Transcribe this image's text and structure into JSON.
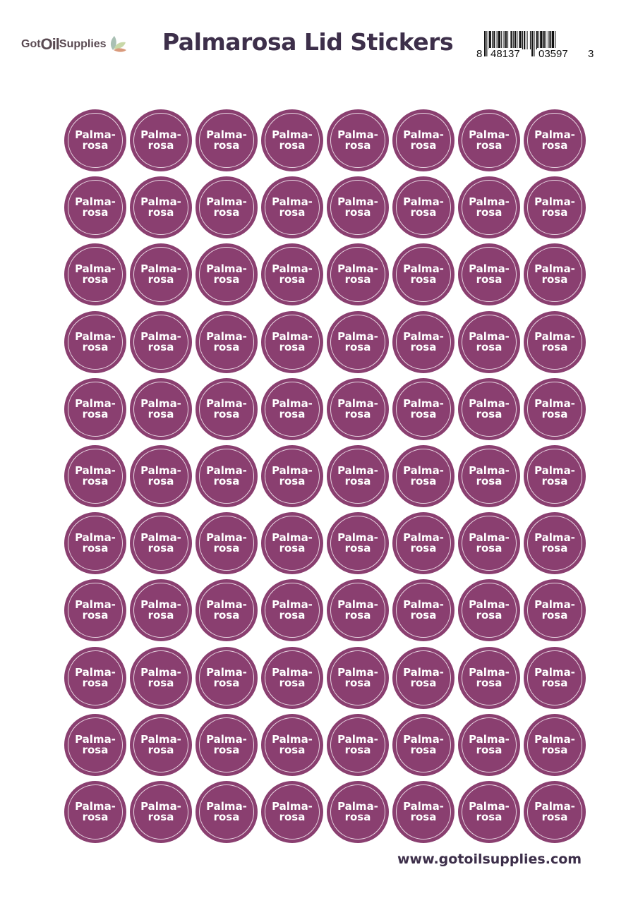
{
  "header": {
    "brand_logo": {
      "part1": "Got",
      "part2": "Oil",
      "part3": "Supplies"
    },
    "title": "Palmarosa Lid Stickers",
    "barcode": {
      "first": "8",
      "left": "48137",
      "right": "03597",
      "last": "3"
    }
  },
  "sticker": {
    "line1": "Palma-",
    "line2": "rosa",
    "rows": 11,
    "columns": 8,
    "color": "#8a3f70"
  },
  "footer": {
    "url": "www.gotoilsupplies.com"
  }
}
